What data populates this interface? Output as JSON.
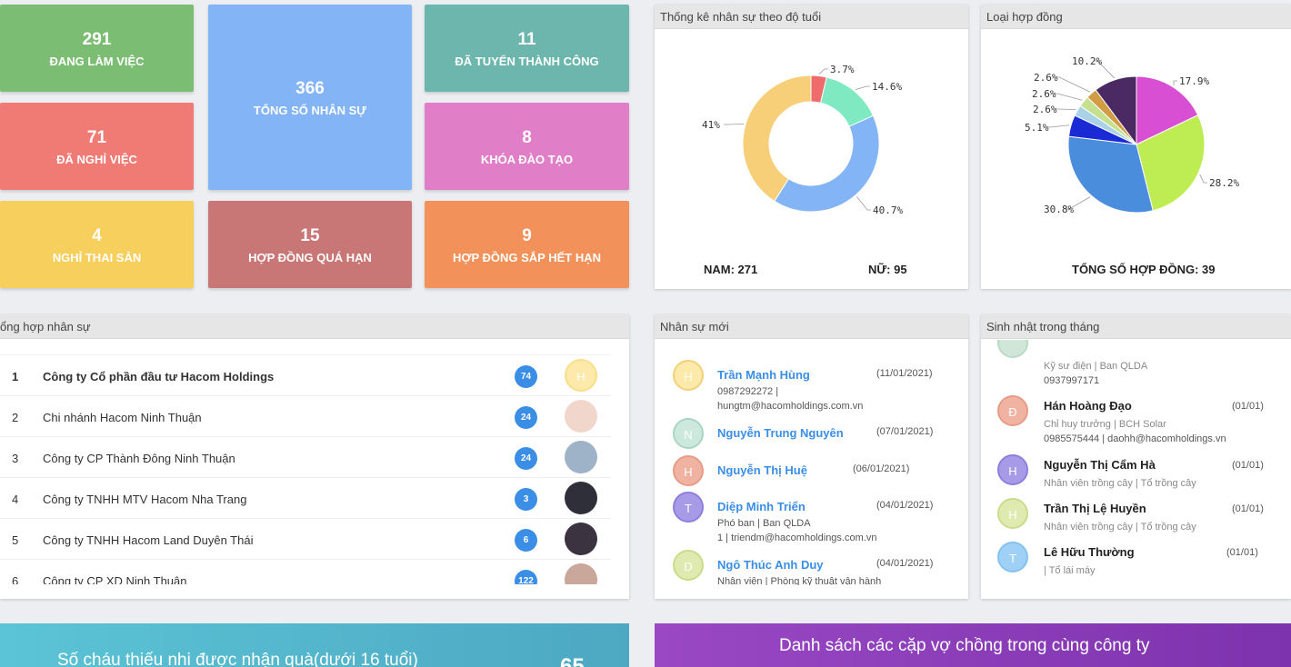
{
  "tiles": {
    "working": {
      "value": "291",
      "label": "ĐANG LÀM VIỆC"
    },
    "total": {
      "value": "366",
      "label": "TỔNG SỐ NHÂN SỰ"
    },
    "recruited": {
      "value": "11",
      "label": "ĐÃ TUYỂN THÀNH CÔNG"
    },
    "quit": {
      "value": "71",
      "label": "ĐÃ NGHỈ VIỆC"
    },
    "training": {
      "value": "8",
      "label": "KHÓA ĐÀO TẠO"
    },
    "maternity": {
      "value": "4",
      "label": "NGHỈ THAI SẢN"
    },
    "expired": {
      "value": "15",
      "label": "HỢP ĐỒNG QUÁ HẠN"
    },
    "expiring": {
      "value": "9",
      "label": "HỢP ĐỒNG SẮP HẾT HẠN"
    }
  },
  "age_chart": {
    "title": "Thống kê nhân sự theo độ tuổi",
    "male": "NAM: 271",
    "female": "NỮ: 95"
  },
  "contract_chart": {
    "title": "Loại hợp đồng",
    "total": "TỔNG SỐ HỢP ĐỒNG: 39"
  },
  "chart_data": [
    {
      "type": "pie",
      "variant": "donut",
      "title": "Thống kê nhân sự theo độ tuổi",
      "slices": [
        {
          "value": 3.7,
          "label": "3.7%",
          "color": "#f06b6b"
        },
        {
          "value": 14.6,
          "label": "14.6%",
          "color": "#7fe9c2"
        },
        {
          "value": 40.7,
          "label": "40.7%",
          "color": "#82b4f6"
        },
        {
          "value": 41,
          "label": "41%",
          "color": "#f7cf79"
        }
      ]
    },
    {
      "type": "pie",
      "title": "Loại hợp đồng",
      "slices": [
        {
          "value": 17.9,
          "label": "17.9%",
          "color": "#d94fd4"
        },
        {
          "value": 28.2,
          "label": "28.2%",
          "color": "#bdec53"
        },
        {
          "value": 30.8,
          "label": "30.8%",
          "color": "#4a8ddc"
        },
        {
          "value": 5.1,
          "label": "5.1%",
          "color": "#1a2bd6"
        },
        {
          "value": 2.6,
          "label": "2.6%",
          "color": "#a9d2e6"
        },
        {
          "value": 2.6,
          "label": "2.6%",
          "color": "#c5e08f"
        },
        {
          "value": 2.6,
          "label": "2.6%",
          "color": "#d29c45"
        },
        {
          "value": 10.2,
          "label": "10.2%",
          "color": "#4b2a63"
        }
      ]
    }
  ],
  "summary": {
    "title": "ổng hợp nhân sự",
    "rows": [
      {
        "idx": "1",
        "name": "Công ty Cổ phần đầu tư Hacom Holdings",
        "count": "74",
        "avatar": "H",
        "bold": true
      },
      {
        "idx": "2",
        "name": "Chi nhánh Hacom Ninh Thuận",
        "count": "24"
      },
      {
        "idx": "3",
        "name": "Công ty CP Thành Đông Ninh Thuận",
        "count": "24"
      },
      {
        "idx": "4",
        "name": "Công ty TNHH MTV Hacom Nha Trang",
        "count": "3"
      },
      {
        "idx": "5",
        "name": "Công ty TNHH Hacom Land Duyên Thái",
        "count": "6"
      },
      {
        "idx": "6",
        "name": "Công ty CP XD Ninh Thuận",
        "count": "122"
      }
    ]
  },
  "new_staff": {
    "title": "Nhân sự mới",
    "people": [
      {
        "initial": "H",
        "name": "Trần Mạnh Hùng",
        "date": "(11/01/2021)",
        "line1": "0987292272 |",
        "line2": "hungtm@hacomholdings.com.vn"
      },
      {
        "initial": "N",
        "name": "Nguyễn Trung Nguyên",
        "date": "(07/01/2021)"
      },
      {
        "initial": "H",
        "name": "Nguyễn Thị Huệ",
        "date": "(06/01/2021)"
      },
      {
        "initial": "T",
        "name": "Diệp Minh Triển",
        "date": "(04/01/2021)",
        "line1": "Phó ban | Ban QLDA",
        "line2": "1 | triendm@hacomholdings.com.vn"
      },
      {
        "initial": "D",
        "name": "Ngô Thúc Anh Duy",
        "date": "(04/01/2021)",
        "line1": "Nhân viên | Phòng kỹ thuật vận hành"
      }
    ]
  },
  "birthdays": {
    "title": "Sinh nhật trong tháng",
    "partial": {
      "line1": "Kỹ sư điện | Ban QLDA",
      "line2": "0937997171"
    },
    "people": [
      {
        "initial": "Đ",
        "name": "Hán Hoàng Đạo",
        "date": "(01/01)",
        "line1": "Chỉ huy trưởng | BCH Solar",
        "line2": "0985575444 | daohh@hacomholdings.vn"
      },
      {
        "initial": "H",
        "name": "Nguyễn Thị Cẩm Hà",
        "date": "(01/01)",
        "line1": "Nhân viên trồng cây | Tổ trồng cây"
      },
      {
        "initial": "H",
        "name": "Trần Thị Lệ Huyền",
        "date": "(01/01)",
        "line1": "Nhân viên trồng cây | Tổ trồng cây"
      },
      {
        "initial": "T",
        "name": "Lê Hữu Thường",
        "date": "(01/01)",
        "line1": "| Tổ lái máy"
      }
    ]
  },
  "banners": {
    "children": {
      "text": "Số cháu thiếu nhi được nhận quà(dưới 16 tuổi)",
      "value": "65"
    },
    "couples": {
      "text": "Danh sách các cặp vợ chồng trong cùng công ty"
    }
  }
}
